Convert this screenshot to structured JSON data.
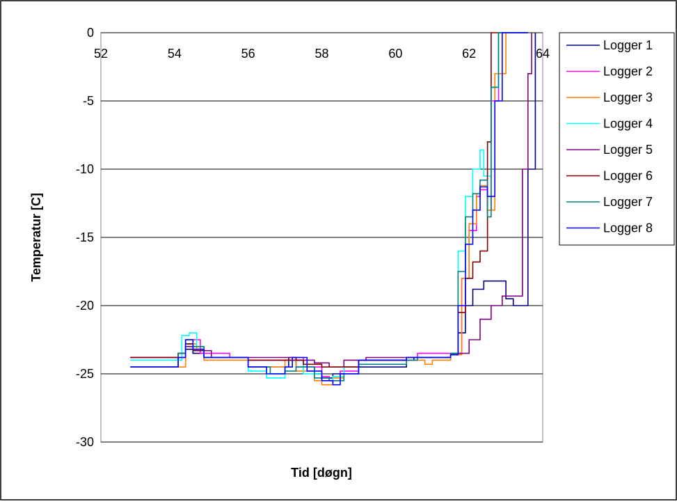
{
  "chart_data": {
    "type": "line",
    "title": "",
    "xlabel": "Tid  [døgn]",
    "ylabel": "Temperatur [C]",
    "xlim": [
      52,
      64
    ],
    "ylim": [
      -30,
      0
    ],
    "xticks": [
      "52",
      "54",
      "56",
      "58",
      "60",
      "62",
      "64"
    ],
    "yticks": [
      "0",
      "-5",
      "-10",
      "-15",
      "-20",
      "-25",
      "-30"
    ],
    "grid": "horizontal",
    "legend_position": "right",
    "series": [
      {
        "name": "Logger 1",
        "color": "#000080",
        "x": [
          52.8,
          53.3,
          54.1,
          54.3,
          54.5,
          54.8,
          56.0,
          57.1,
          57.3,
          57.8,
          58.0,
          58.3,
          58.6,
          60.3,
          60.5,
          61.5,
          61.7,
          61.9,
          62.1,
          62.4,
          62.7,
          63.0,
          63.2,
          63.5,
          63.6,
          63.8
        ],
        "y": [
          -24.5,
          -24.5,
          -23.8,
          -23.2,
          -23.5,
          -23.8,
          -24.5,
          -23.8,
          -24.5,
          -25.0,
          -25.3,
          -25.0,
          -24.5,
          -24.0,
          -23.8,
          -23.6,
          -22.0,
          -20.0,
          -18.8,
          -18.2,
          -18.2,
          -19.5,
          -20.0,
          -20.0,
          -10.0,
          0.0
        ]
      },
      {
        "name": "Logger 2",
        "color": "#FF00FF",
        "x": [
          52.8,
          54.0,
          54.3,
          54.5,
          54.7,
          55.5,
          56.0,
          57.2,
          57.5,
          58.0,
          58.2,
          58.5,
          59.0,
          60.3,
          60.6,
          61.5,
          61.8,
          62.0,
          62.2,
          62.3,
          62.5,
          62.6,
          62.8,
          63.0,
          63.4,
          63.6
        ],
        "y": [
          -23.8,
          -23.8,
          -22.8,
          -22.5,
          -23.5,
          -23.8,
          -24.0,
          -23.8,
          -24.5,
          -25.2,
          -25.5,
          -24.8,
          -24.0,
          -23.8,
          -23.5,
          -23.5,
          -18.0,
          -14.5,
          -12.0,
          -11.5,
          -13.0,
          -5.0,
          0.0,
          0.0,
          0.0,
          0.0
        ]
      },
      {
        "name": "Logger 3",
        "color": "#FF8000",
        "x": [
          52.8,
          54.1,
          54.3,
          54.6,
          54.8,
          56.0,
          57.0,
          57.3,
          57.8,
          58.0,
          58.3,
          58.6,
          59.0,
          60.5,
          60.8,
          61.0,
          61.5,
          61.8,
          62.0,
          62.2,
          62.3,
          62.5,
          62.7,
          63.0,
          63.4,
          63.6
        ],
        "y": [
          -24.5,
          -24.5,
          -22.8,
          -23.2,
          -24.0,
          -24.5,
          -24.0,
          -24.8,
          -25.5,
          -25.8,
          -25.3,
          -24.5,
          -24.0,
          -24.0,
          -24.3,
          -24.0,
          -23.6,
          -18.0,
          -14.0,
          -11.8,
          -11.2,
          -13.0,
          -3.0,
          0.0,
          0.0,
          0.0
        ]
      },
      {
        "name": "Logger 4",
        "color": "#00FFFF",
        "x": [
          52.8,
          54.0,
          54.2,
          54.4,
          54.6,
          54.8,
          56.0,
          56.5,
          57.0,
          57.2,
          57.5,
          58.0,
          58.3,
          58.6,
          59.0,
          60.3,
          60.6,
          61.5,
          61.7,
          61.9,
          62.1,
          62.3,
          62.4,
          62.6,
          62.8,
          63.4,
          63.6
        ],
        "y": [
          -24.0,
          -24.0,
          -22.2,
          -22.0,
          -23.0,
          -23.8,
          -24.8,
          -25.3,
          -24.5,
          -24.0,
          -25.0,
          -25.5,
          -25.2,
          -24.5,
          -24.0,
          -23.8,
          -23.8,
          -23.5,
          -16.0,
          -12.0,
          -10.0,
          -8.6,
          -10.5,
          -4.0,
          0.0,
          0.0,
          0.0
        ]
      },
      {
        "name": "Logger 5",
        "color": "#800080",
        "x": [
          52.8,
          53.5,
          54.1,
          54.3,
          54.5,
          55.0,
          56.0,
          57.0,
          57.3,
          57.8,
          58.2,
          58.6,
          59.2,
          60.5,
          61.5,
          61.7,
          62.0,
          62.3,
          62.6,
          62.9,
          63.0,
          63.2,
          63.4,
          63.45,
          63.6,
          63.7
        ],
        "y": [
          -23.8,
          -23.8,
          -23.5,
          -23.0,
          -23.3,
          -23.8,
          -23.8,
          -23.8,
          -24.0,
          -24.2,
          -24.5,
          -24.0,
          -23.8,
          -23.8,
          -23.6,
          -23.5,
          -22.5,
          -21.0,
          -20.0,
          -19.3,
          -19.3,
          -19.3,
          -19.3,
          -10.0,
          -3.0,
          0.0
        ]
      },
      {
        "name": "Logger 6",
        "color": "#800000",
        "x": [
          52.8,
          53.2,
          54.1,
          54.3,
          54.5,
          54.8,
          56.0,
          57.0,
          57.5,
          58.0,
          58.5,
          59.0,
          60.3,
          61.5,
          61.7,
          61.9,
          62.1,
          62.3,
          62.45,
          62.5,
          62.6,
          63.0,
          63.4,
          63.6
        ],
        "y": [
          -23.8,
          -23.8,
          -23.5,
          -22.8,
          -23.3,
          -23.8,
          -24.0,
          -24.0,
          -24.3,
          -24.5,
          -24.5,
          -24.0,
          -23.8,
          -23.6,
          -20.5,
          -18.0,
          -16.8,
          -16.0,
          -16.0,
          -8.0,
          0.0,
          0.0,
          0.0,
          0.0
        ]
      },
      {
        "name": "Logger 7",
        "color": "#008080",
        "x": [
          52.8,
          53.3,
          54.1,
          54.3,
          54.5,
          54.8,
          56.0,
          56.6,
          57.0,
          57.3,
          57.8,
          58.2,
          58.6,
          59.0,
          60.3,
          60.6,
          61.5,
          61.7,
          61.9,
          62.1,
          62.3,
          62.5,
          62.6,
          62.8,
          63.4,
          63.6
        ],
        "y": [
          -24.5,
          -24.5,
          -23.5,
          -22.5,
          -23.0,
          -23.8,
          -24.5,
          -25.0,
          -24.8,
          -24.5,
          -25.3,
          -25.5,
          -25.0,
          -24.3,
          -24.0,
          -23.8,
          -23.5,
          -17.5,
          -13.5,
          -11.8,
          -10.8,
          -13.5,
          -4.0,
          0.0,
          0.0,
          0.0
        ]
      },
      {
        "name": "Logger 8",
        "color": "#0000FF",
        "x": [
          52.8,
          53.3,
          54.1,
          54.3,
          54.5,
          54.8,
          56.0,
          56.5,
          57.0,
          57.2,
          57.6,
          58.0,
          58.3,
          58.5,
          59.0,
          60.3,
          60.5,
          61.5,
          61.7,
          61.9,
          62.1,
          62.3,
          62.5,
          62.7,
          62.9,
          63.4,
          63.6
        ],
        "y": [
          -24.5,
          -24.5,
          -23.8,
          -22.5,
          -23.2,
          -23.8,
          -24.5,
          -25.0,
          -24.5,
          -23.8,
          -24.8,
          -25.5,
          -25.8,
          -25.0,
          -24.0,
          -23.8,
          -23.8,
          -23.6,
          -20.0,
          -15.5,
          -13.0,
          -11.3,
          -12.0,
          -5.0,
          0.0,
          0.0,
          0.0
        ]
      }
    ]
  }
}
